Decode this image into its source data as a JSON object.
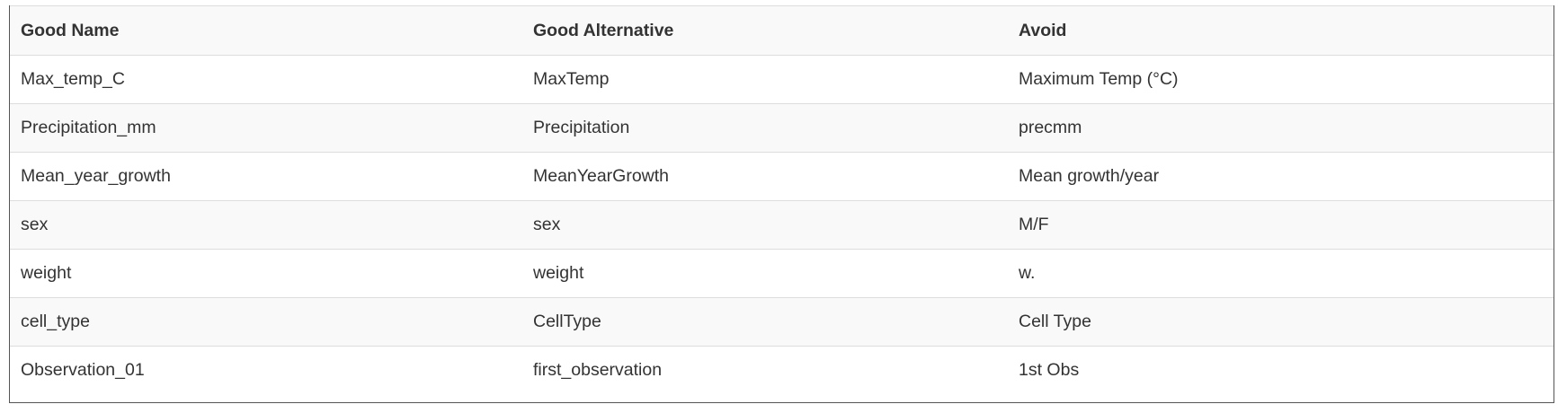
{
  "table": {
    "headers": [
      "Good Name",
      "Good Alternative",
      "Avoid"
    ],
    "rows": [
      [
        "Max_temp_C",
        "MaxTemp",
        "Maximum Temp (°C)"
      ],
      [
        "Precipitation_mm",
        "Precipitation",
        "precmm"
      ],
      [
        "Mean_year_growth",
        "MeanYearGrowth",
        "Mean growth/year"
      ],
      [
        "sex",
        "sex",
        "M/F"
      ],
      [
        "weight",
        "weight",
        "w."
      ],
      [
        "cell_type",
        "CellType",
        "Cell Type"
      ],
      [
        "Observation_01",
        "first_observation",
        "1st Obs"
      ]
    ]
  }
}
